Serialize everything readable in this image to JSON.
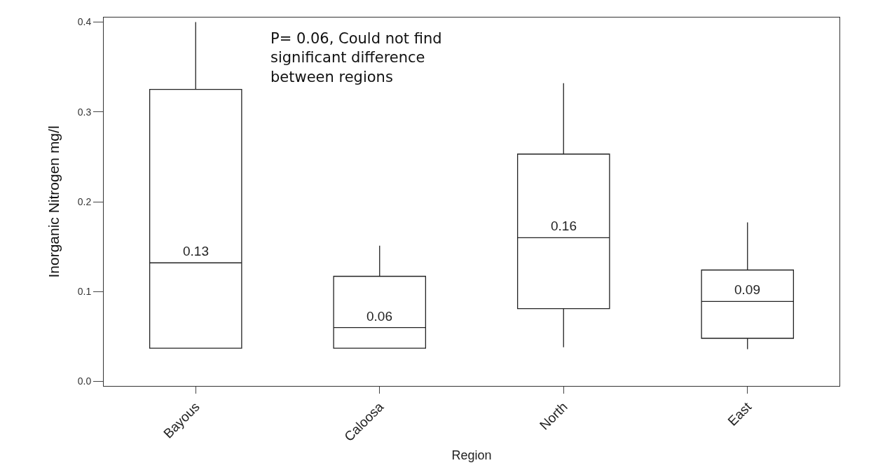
{
  "chart_data": {
    "type": "box",
    "xlabel": "Region",
    "ylabel": "Inorganic Nitrogen mg/l",
    "categories": [
      "Bayous",
      "Caloosa",
      "North",
      "East"
    ],
    "boxes": [
      {
        "low": 0.037,
        "q1": 0.037,
        "median": 0.132,
        "q3": 0.325,
        "high": 0.4
      },
      {
        "low": 0.037,
        "q1": 0.037,
        "median": 0.06,
        "q3": 0.117,
        "high": 0.151
      },
      {
        "low": 0.038,
        "q1": 0.081,
        "median": 0.16,
        "q3": 0.253,
        "high": 0.332
      },
      {
        "low": 0.036,
        "q1": 0.048,
        "median": 0.089,
        "q3": 0.124,
        "high": 0.177
      }
    ],
    "ylim": [
      -0.005,
      0.405
    ],
    "yticks": [
      {
        "value": 0,
        "label": "0.0"
      },
      0.1,
      0.2,
      0.3,
      0.4
    ],
    "grid": false,
    "annotations": [
      "P= 0.06, Could not find significant difference between regions",
      {
        "text": "0.13",
        "x": "Bayous",
        "y": 0.132
      },
      {
        "text": "0.06",
        "x": "Caloosa",
        "y": 0.06
      },
      {
        "text": "0.16",
        "x": "North",
        "y": 0.16
      },
      {
        "text": "0.09",
        "x": "East",
        "y": 0.089
      }
    ]
  }
}
